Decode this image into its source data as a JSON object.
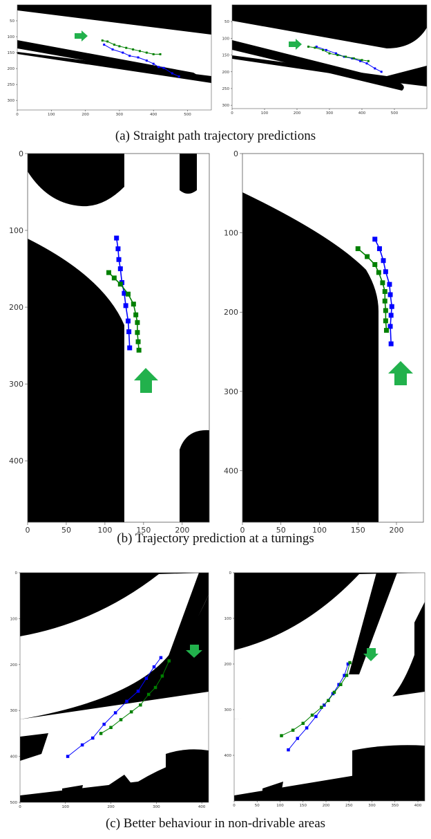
{
  "captions": {
    "a": "(a) Straight path trajectory predictions",
    "b": "(b) Trajectory prediction at a turnings",
    "c": "(c) Better behaviour in non-drivable areas"
  },
  "colors": {
    "predicted": "#0000ff",
    "ground_truth": "#008000",
    "arrow": "#22b14c",
    "obstacle": "#000000",
    "drivable": "#ffffff"
  },
  "chart_data": [
    {
      "id": "a-left",
      "type": "line",
      "xticks": [
        0,
        100,
        200,
        300,
        400,
        500
      ],
      "yticks": [
        50,
        100,
        150,
        200,
        250,
        300
      ],
      "xlim": [
        0,
        570
      ],
      "ylim": [
        330,
        0
      ],
      "series": [
        {
          "color": "blue",
          "x": [
            255,
            280,
            310,
            330,
            355,
            380,
            400,
            415,
            430,
            455,
            475
          ],
          "y": [
            125,
            140,
            150,
            160,
            165,
            175,
            185,
            195,
            198,
            215,
            225
          ]
        },
        {
          "color": "green",
          "x": [
            250,
            265,
            285,
            300,
            320,
            340,
            360,
            380,
            400,
            420
          ],
          "y": [
            112,
            115,
            125,
            130,
            135,
            140,
            145,
            150,
            155,
            155
          ]
        }
      ],
      "arrow_direction": "right"
    },
    {
      "id": "a-right",
      "type": "line",
      "xticks": [
        0,
        100,
        200,
        300,
        400,
        500
      ],
      "yticks": [
        50,
        100,
        150,
        200,
        250,
        300
      ],
      "xlim": [
        0,
        600
      ],
      "ylim": [
        310,
        0
      ],
      "series": [
        {
          "color": "blue",
          "x": [
            260,
            290,
            320,
            345,
            370,
            395,
            415,
            440,
            460
          ],
          "y": [
            125,
            135,
            145,
            155,
            160,
            168,
            175,
            190,
            200
          ]
        },
        {
          "color": "green",
          "x": [
            235,
            255,
            280,
            300,
            325,
            350,
            375,
            400,
            420
          ],
          "y": [
            125,
            128,
            135,
            145,
            150,
            155,
            160,
            165,
            168
          ]
        }
      ],
      "arrow_direction": "right"
    },
    {
      "id": "b-left",
      "type": "line",
      "xticks": [
        0,
        50,
        100,
        150,
        200
      ],
      "yticks": [
        0,
        100,
        200,
        300,
        400
      ],
      "xlim": [
        0,
        235
      ],
      "ylim": [
        480,
        0
      ],
      "series": [
        {
          "color": "blue",
          "x": [
            115,
            117,
            118,
            120,
            122,
            125,
            127,
            130,
            131,
            132
          ],
          "y": [
            110,
            124,
            138,
            150,
            168,
            182,
            198,
            218,
            232,
            253
          ]
        },
        {
          "color": "green",
          "x": [
            105,
            112,
            120,
            130,
            137,
            140,
            142,
            142,
            143,
            144
          ],
          "y": [
            155,
            162,
            170,
            183,
            196,
            210,
            220,
            233,
            245,
            256
          ]
        }
      ],
      "arrow_direction": "up"
    },
    {
      "id": "b-right",
      "type": "line",
      "xticks": [
        0,
        50,
        100,
        150,
        200
      ],
      "yticks": [
        0,
        100,
        200,
        300,
        400
      ],
      "xlim": [
        0,
        235
      ],
      "ylim": [
        465,
        0
      ],
      "series": [
        {
          "color": "blue",
          "x": [
            172,
            178,
            183,
            186,
            191,
            192,
            194,
            193,
            192,
            193
          ],
          "y": [
            108,
            120,
            135,
            149,
            165,
            178,
            193,
            204,
            218,
            240
          ]
        },
        {
          "color": "green",
          "x": [
            150,
            162,
            172,
            177,
            182,
            185,
            185,
            186,
            186,
            187
          ],
          "y": [
            120,
            130,
            140,
            150,
            163,
            174,
            186,
            198,
            211,
            223
          ]
        }
      ],
      "arrow_direction": "up"
    },
    {
      "id": "c-left",
      "type": "line",
      "xticks": [
        0,
        100,
        200,
        300,
        400
      ],
      "yticks": [
        0,
        100,
        200,
        300,
        400,
        500
      ],
      "xlim": [
        0,
        415
      ],
      "ylim": [
        500,
        0
      ],
      "series": [
        {
          "color": "blue",
          "x": [
            105,
            137,
            160,
            185,
            210,
            235,
            260,
            278,
            295,
            310
          ],
          "y": [
            400,
            375,
            360,
            330,
            305,
            280,
            258,
            230,
            205,
            185
          ]
        },
        {
          "color": "green",
          "x": [
            178,
            200,
            222,
            245,
            265,
            283,
            298,
            313,
            328
          ],
          "y": [
            350,
            337,
            320,
            303,
            288,
            265,
            250,
            225,
            192
          ]
        }
      ],
      "arrow_direction": "down"
    },
    {
      "id": "c-right",
      "type": "line",
      "xticks": [
        0,
        50,
        100,
        150,
        200,
        250,
        300,
        350,
        400
      ],
      "yticks": [
        0,
        100,
        200,
        300,
        400
      ],
      "xlim": [
        0,
        415
      ],
      "ylim": [
        500,
        0
      ],
      "series": [
        {
          "color": "blue",
          "x": [
            118,
            138,
            158,
            178,
            196,
            215,
            228,
            240,
            248
          ],
          "y": [
            388,
            363,
            340,
            315,
            290,
            265,
            245,
            225,
            200
          ]
        },
        {
          "color": "green",
          "x": [
            103,
            128,
            150,
            170,
            190,
            205,
            218,
            232,
            245,
            252
          ],
          "y": [
            357,
            345,
            330,
            312,
            295,
            280,
            262,
            245,
            225,
            197
          ]
        }
      ],
      "arrow_direction": "down"
    }
  ]
}
